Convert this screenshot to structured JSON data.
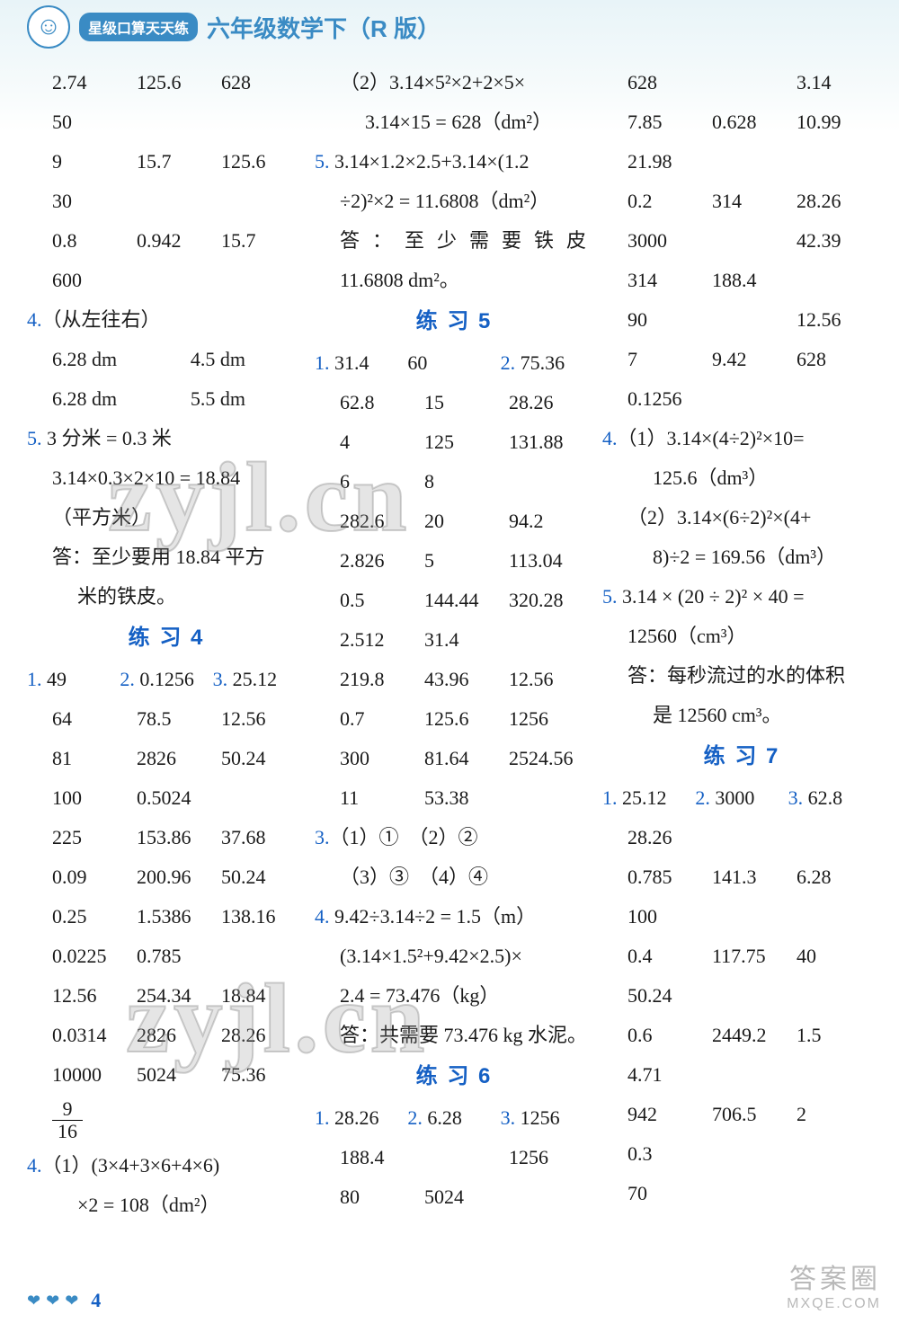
{
  "header": {
    "pill": "星级口算天天练",
    "title": "六年级数学下（R 版）"
  },
  "col1": {
    "rows_a": [
      [
        "2.74",
        "125.6",
        "628"
      ],
      [
        "50",
        "",
        ""
      ],
      [
        "9",
        "15.7",
        "125.6"
      ],
      [
        "30",
        "",
        ""
      ],
      [
        "0.8",
        "0.942",
        "15.7"
      ],
      [
        "600",
        "",
        ""
      ]
    ],
    "q4_label": "4.（从左往右）",
    "q4_rows": [
      [
        "6.28 dm",
        "4.5 dm"
      ],
      [
        "6.28 dm",
        "5.5 dm"
      ]
    ],
    "q5_a": "5. 3 分米 = 0.3 米",
    "q5_b": "3.14×0.3×2×10 = 18.84",
    "q5_c": "（平方米）",
    "q5_d": "答：至少要用 18.84 平方",
    "q5_e": "米的铁皮。",
    "section4": "练 习 4",
    "p4_first": [
      [
        "1.",
        "49",
        "2.",
        "0.1256",
        "3.",
        "25.12"
      ]
    ],
    "p4_rows": [
      [
        "64",
        "78.5",
        "12.56"
      ],
      [
        "81",
        "2826",
        "50.24"
      ],
      [
        "100",
        "0.5024",
        ""
      ],
      [
        "225",
        "153.86",
        "37.68"
      ],
      [
        "0.09",
        "200.96",
        "50.24"
      ],
      [
        "0.25",
        "1.5386",
        "138.16"
      ],
      [
        "0.0225",
        "0.785",
        ""
      ],
      [
        "12.56",
        "254.34",
        "18.84"
      ],
      [
        "0.0314",
        "2826",
        "28.26"
      ],
      [
        "10000",
        "5024",
        "75.36"
      ]
    ],
    "frac_n": "9",
    "frac_d": "16",
    "p4_q4a": "4.（1）(3×4+3×6+4×6)",
    "p4_q4b": "×2 = 108（dm²）"
  },
  "col2": {
    "top_a": "（2）3.14×5²×2+2×5×",
    "top_b": "3.14×15 = 628（dm²）",
    "q5a": "5. 3.14×1.2×2.5+3.14×(1.2",
    "q5b": "÷2)²×2 = 11.6808（dm²）",
    "q5c": "答：至少需要铁皮",
    "q5d": "11.6808 dm²。",
    "section5": "练 习 5",
    "p5_first": [
      "1.",
      "31.4",
      "60",
      "2.",
      "75.36"
    ],
    "p5_rows": [
      [
        "62.8",
        "15",
        "28.26"
      ],
      [
        "4",
        "125",
        "131.88"
      ],
      [
        "6",
        "8",
        ""
      ],
      [
        "282.6",
        "20",
        "94.2"
      ],
      [
        "2.826",
        "5",
        "113.04"
      ],
      [
        "0.5",
        "144.44",
        "320.28"
      ],
      [
        "2.512",
        "31.4",
        ""
      ],
      [
        "219.8",
        "43.96",
        "12.56"
      ],
      [
        "0.7",
        "125.6",
        "1256"
      ],
      [
        "300",
        "81.64",
        "2524.56"
      ],
      [
        "11",
        "53.38",
        ""
      ]
    ],
    "q3a": "3.（1）①　（2）②",
    "q3b": "（3）③　（4）④",
    "q4a": "4. 9.42÷3.14÷2 = 1.5（m）",
    "q4b": "(3.14×1.5²+9.42×2.5)×",
    "q4c": "2.4 = 73.476（kg）",
    "q4d": "答：共需要 73.476 kg 水泥。",
    "section6": "练 习 6",
    "p6_first": [
      "1.",
      "28.26",
      "2.",
      "6.28",
      "3.",
      "1256"
    ],
    "p6_rows": [
      [
        "188.4",
        "",
        "1256"
      ],
      [
        "80",
        "5024",
        ""
      ]
    ]
  },
  "col3": {
    "top_rows": [
      [
        "628",
        "",
        "3.14"
      ],
      [
        "7.85",
        "0.628",
        "10.99"
      ],
      [
        "21.98",
        "",
        ""
      ],
      [
        "0.2",
        "314",
        "28.26"
      ],
      [
        "3000",
        "",
        "42.39"
      ],
      [
        "314",
        "188.4",
        ""
      ],
      [
        "90",
        "",
        "12.56"
      ],
      [
        "7",
        "9.42",
        "628"
      ],
      [
        "0.1256",
        "",
        ""
      ]
    ],
    "q4a": "4.（1）3.14×(4÷2)²×10=",
    "q4b": "125.6（dm³）",
    "q4c": "（2）3.14×(6÷2)²×(4+",
    "q4d": "8)÷2 = 169.56（dm³）",
    "q5a": "5. 3.14 × (20 ÷ 2)² × 40 =",
    "q5b": "12560（cm³）",
    "q5c": "答：每秒流过的水的体积",
    "q5d": "是 12560 cm³。",
    "section7": "练 习 7",
    "p7_first": [
      "1.",
      "25.12",
      "2.",
      "3000",
      "3.",
      "62.8"
    ],
    "p7_rows": [
      [
        "28.26",
        "",
        ""
      ],
      [
        "0.785",
        "141.3",
        "6.28"
      ],
      [
        "100",
        "",
        ""
      ],
      [
        "0.4",
        "117.75",
        "40"
      ],
      [
        "50.24",
        "",
        ""
      ],
      [
        "0.6",
        "2449.2",
        "1.5"
      ],
      [
        "4.71",
        "",
        ""
      ],
      [
        "942",
        "706.5",
        "2"
      ],
      [
        "0.3",
        "",
        ""
      ],
      [
        "70",
        "",
        ""
      ]
    ]
  },
  "footer": {
    "page": "4"
  },
  "watermark": "zyjl.cn",
  "brand1": "答案圈",
  "brand2": "MXQE.COM"
}
